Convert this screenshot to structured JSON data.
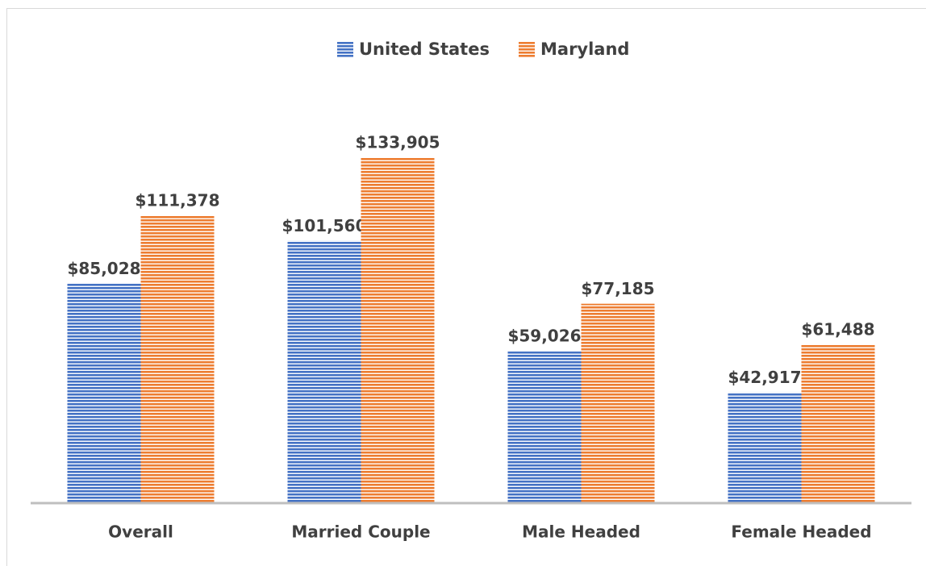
{
  "chart_data": {
    "type": "bar",
    "categories": [
      "Overall",
      "Married Couple",
      "Male Headed",
      "Female Headed"
    ],
    "series": [
      {
        "name": "United States",
        "color": "#4472c4",
        "values": [
          85028,
          101560,
          59026,
          42917
        ],
        "value_labels": [
          "$85,028",
          "$101,560",
          "$59,026",
          "$42,917"
        ]
      },
      {
        "name": "Maryland",
        "color": "#ed7d31",
        "values": [
          111378,
          133905,
          77185,
          61488
        ],
        "value_labels": [
          "$111,378",
          "$133,905",
          "$77,185",
          "$61,488"
        ]
      }
    ],
    "legend": "top"
  }
}
